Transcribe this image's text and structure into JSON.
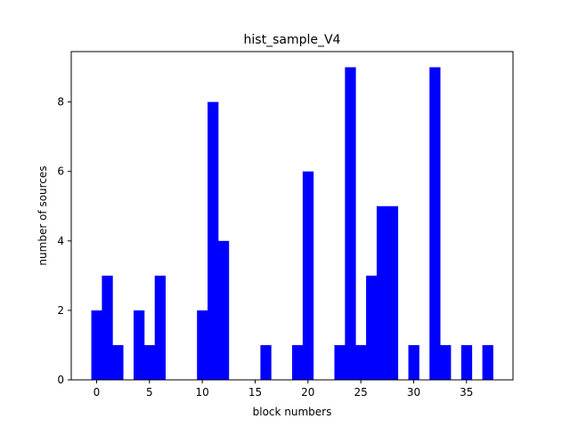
{
  "chart_data": {
    "type": "bar",
    "title": "hist_sample_V4",
    "xlabel": "block numbers",
    "ylabel": "number of sources",
    "bin_width": 1,
    "bins": [
      {
        "x": 0,
        "value": 2
      },
      {
        "x": 1,
        "value": 3
      },
      {
        "x": 2,
        "value": 1
      },
      {
        "x": 4,
        "value": 2
      },
      {
        "x": 5,
        "value": 1
      },
      {
        "x": 6,
        "value": 3
      },
      {
        "x": 10,
        "value": 2
      },
      {
        "x": 11,
        "value": 8
      },
      {
        "x": 12,
        "value": 4
      },
      {
        "x": 16,
        "value": 1
      },
      {
        "x": 19,
        "value": 1
      },
      {
        "x": 20,
        "value": 6
      },
      {
        "x": 23,
        "value": 1
      },
      {
        "x": 24,
        "value": 9
      },
      {
        "x": 25,
        "value": 1
      },
      {
        "x": 26,
        "value": 3
      },
      {
        "x": 27,
        "value": 5
      },
      {
        "x": 28,
        "value": 5
      },
      {
        "x": 30,
        "value": 1
      },
      {
        "x": 32,
        "value": 9
      },
      {
        "x": 33,
        "value": 1
      },
      {
        "x": 35,
        "value": 1
      },
      {
        "x": 37,
        "value": 1
      }
    ],
    "xlim": [
      -2.4,
      39.4
    ],
    "ylim": [
      0,
      9.45
    ],
    "xticks": [
      0,
      5,
      10,
      15,
      20,
      25,
      30,
      35
    ],
    "yticks": [
      0,
      2,
      4,
      6,
      8
    ],
    "bar_color": "#0000ff",
    "grid": false,
    "legend": "none"
  }
}
